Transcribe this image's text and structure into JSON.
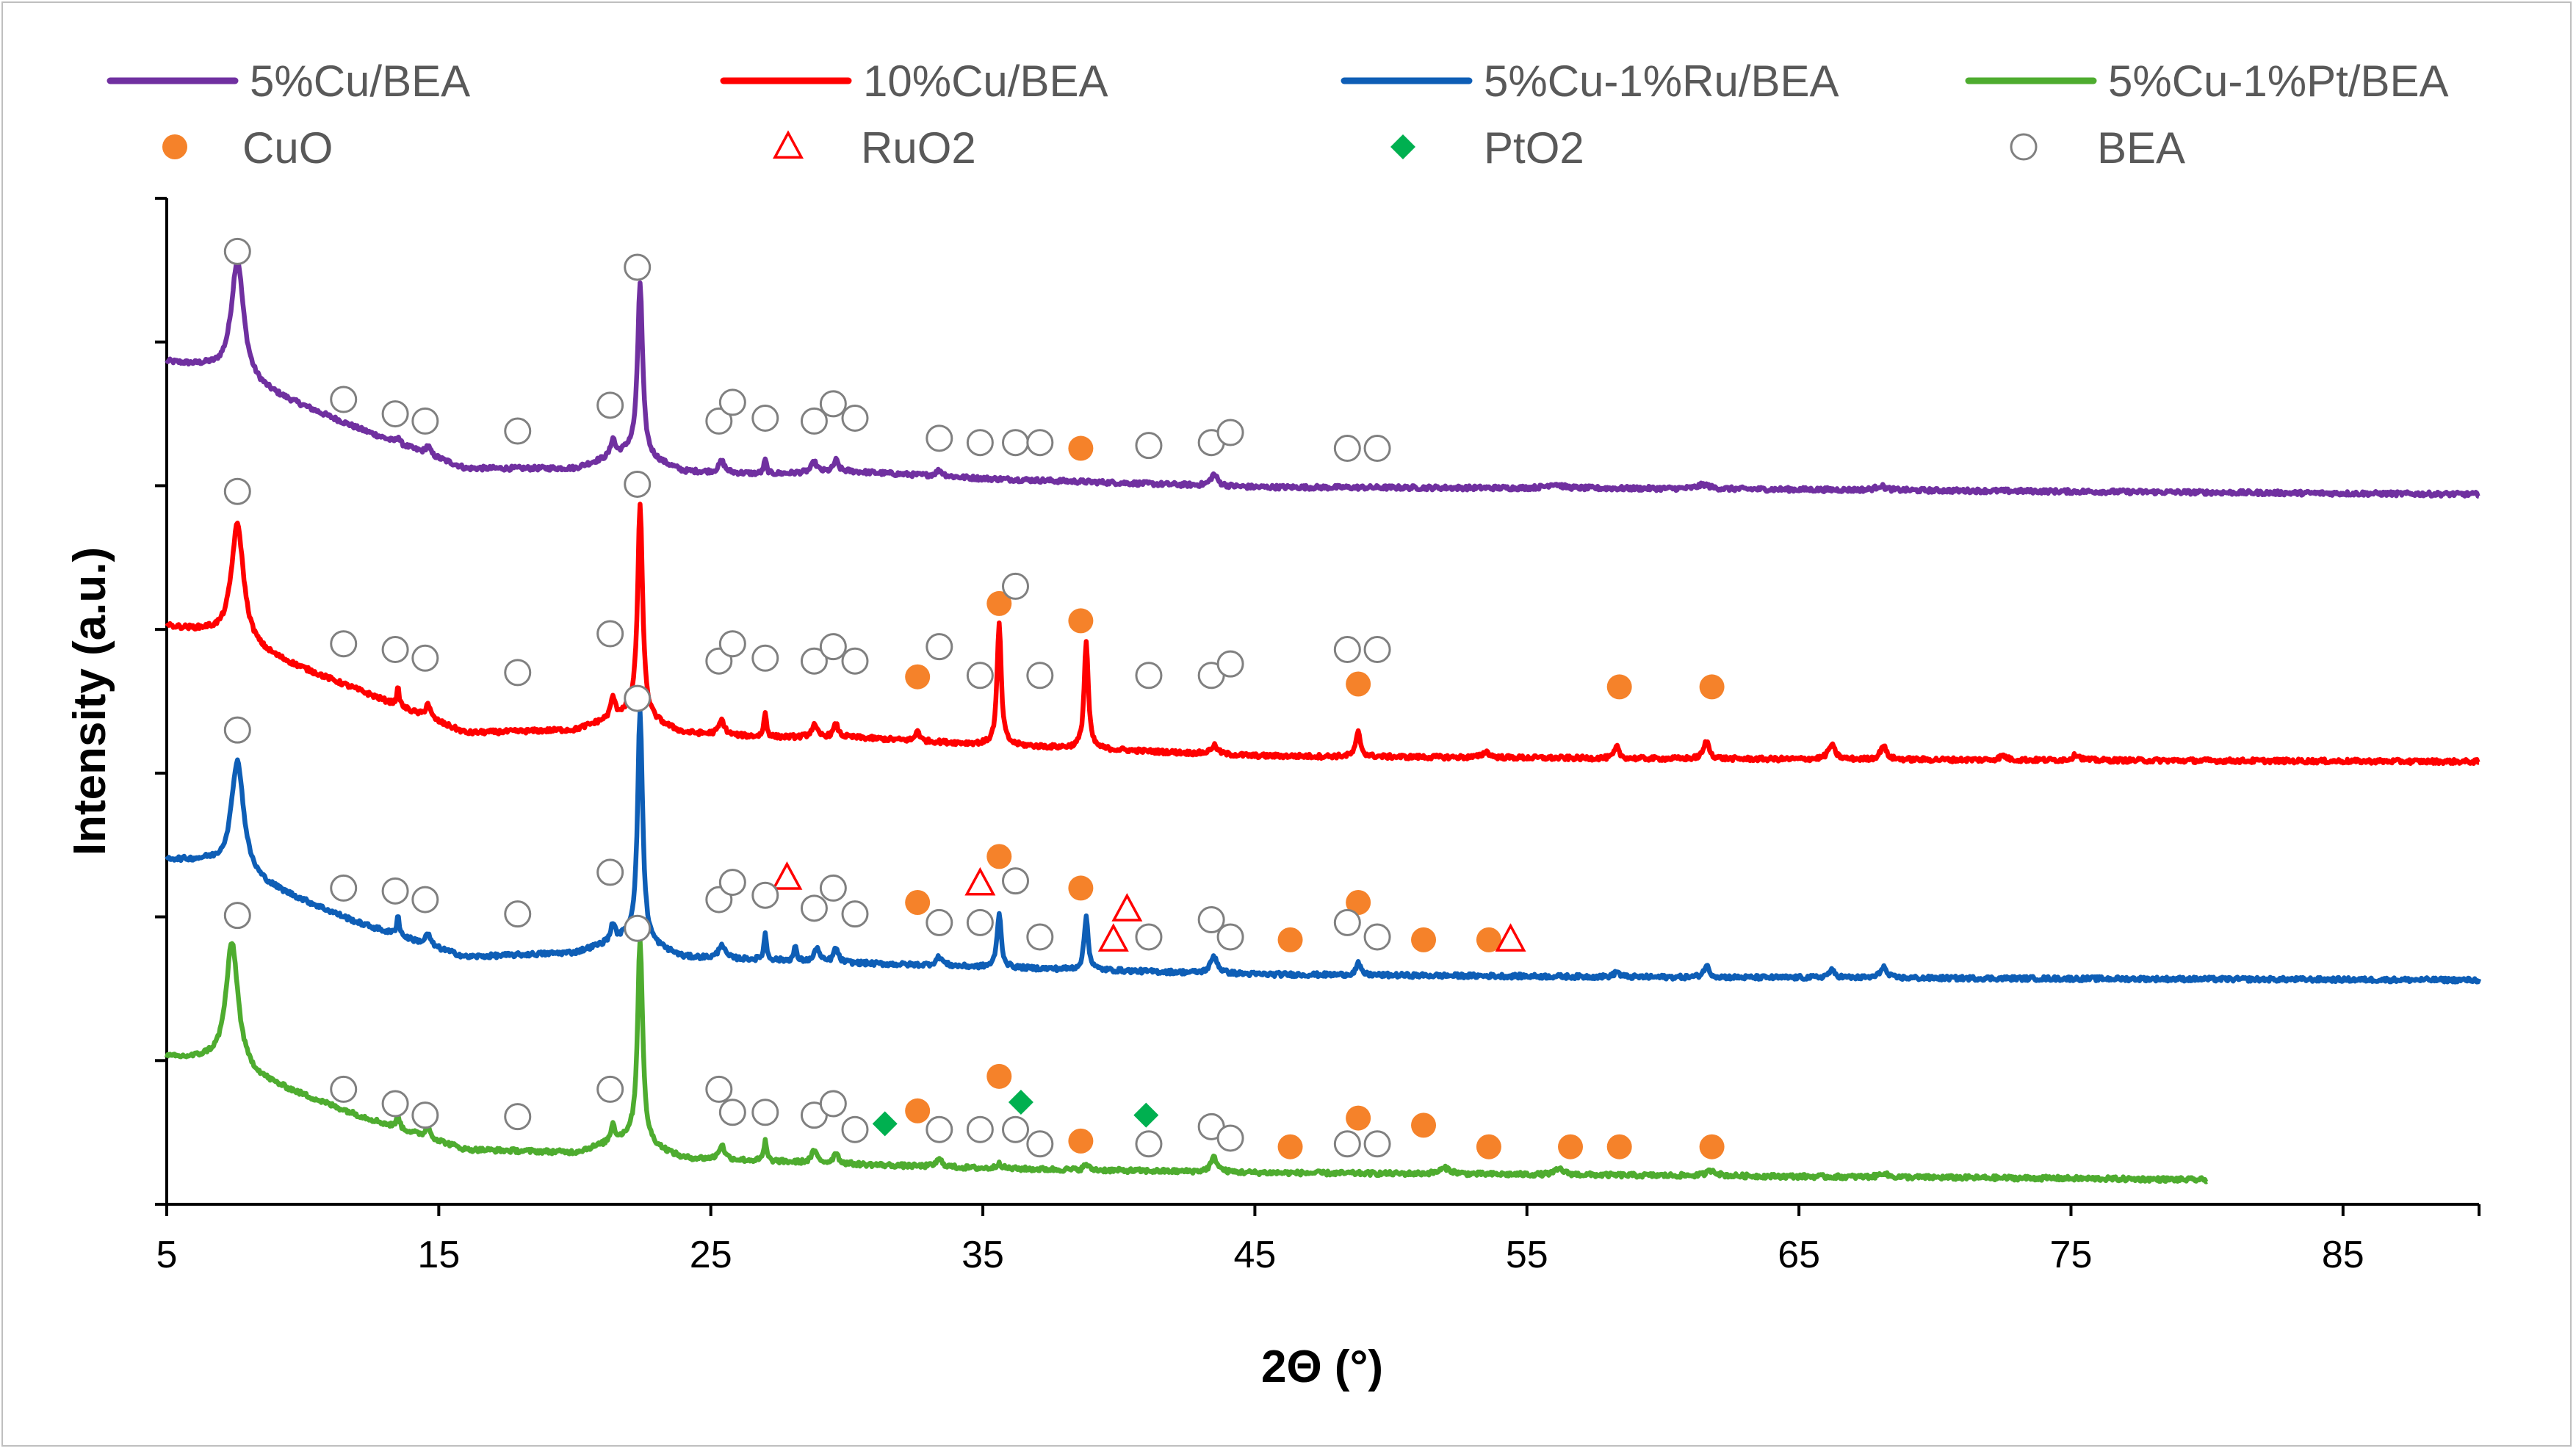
{
  "chart_data": {
    "type": "line",
    "title": "",
    "xlabel": "2Θ (°)",
    "ylabel": "Intensity (a.u.)",
    "xlim": [
      5,
      90
    ],
    "ylim": [
      0,
      7
    ],
    "x_ticks": [
      5,
      15,
      25,
      35,
      45,
      55,
      65,
      75,
      85
    ],
    "y_tick_count": 8,
    "y_tick_labels_shown": false,
    "grid": false,
    "legend_position": "top",
    "series": [
      {
        "name": "5%Cu/BEA",
        "color": "#7030A0",
        "x_range": [
          5,
          90
        ],
        "baseline": [
          [
            5,
            5.86
          ],
          [
            6.5,
            5.82
          ],
          [
            12,
            5.4
          ],
          [
            16,
            5.12
          ],
          [
            20,
            5.12
          ],
          [
            22,
            5.24
          ],
          [
            24,
            5.1
          ],
          [
            27,
            5.08
          ],
          [
            30,
            5.1
          ],
          [
            35,
            5.05
          ],
          [
            45,
            4.99
          ],
          [
            60,
            4.98
          ],
          [
            75,
            4.96
          ],
          [
            90,
            4.94
          ]
        ],
        "peaks": [
          [
            7.6,
            0.83,
            0.55
          ],
          [
            13.5,
            0.05,
            0.12
          ],
          [
            14.6,
            0.06,
            0.2
          ],
          [
            21.4,
            0.12,
            0.18
          ],
          [
            22.4,
            1.2,
            0.22
          ],
          [
            25.4,
            0.08,
            0.25
          ],
          [
            27.0,
            0.1,
            0.12
          ],
          [
            28.8,
            0.07,
            0.25
          ],
          [
            29.6,
            0.08,
            0.2
          ],
          [
            33.4,
            0.04,
            0.3
          ],
          [
            43.5,
            0.08,
            0.3
          ],
          [
            56,
            0.03,
            0.6
          ],
          [
            61.5,
            0.03,
            0.5
          ],
          [
            68,
            0.03,
            0.4
          ]
        ]
      },
      {
        "name": "10%Cu/BEA",
        "color": "#FF0000",
        "x_range": [
          5,
          90
        ],
        "baseline": [
          [
            5,
            4.02
          ],
          [
            6.5,
            3.98
          ],
          [
            12,
            3.58
          ],
          [
            16,
            3.28
          ],
          [
            20,
            3.3
          ],
          [
            22,
            3.42
          ],
          [
            24,
            3.28
          ],
          [
            27,
            3.25
          ],
          [
            30,
            3.25
          ],
          [
            35,
            3.2
          ],
          [
            45,
            3.12
          ],
          [
            60,
            3.1
          ],
          [
            75,
            3.09
          ],
          [
            90,
            3.08
          ]
        ],
        "peaks": [
          [
            7.6,
            0.83,
            0.55
          ],
          [
            13.5,
            0.12,
            0.12
          ],
          [
            14.6,
            0.1,
            0.2
          ],
          [
            21.4,
            0.14,
            0.18
          ],
          [
            22.4,
            1.47,
            0.22
          ],
          [
            25.4,
            0.1,
            0.25
          ],
          [
            27.0,
            0.17,
            0.12
          ],
          [
            28.8,
            0.08,
            0.25
          ],
          [
            29.6,
            0.09,
            0.2
          ],
          [
            32.6,
            0.08,
            0.15
          ],
          [
            35.6,
            0.85,
            0.18
          ],
          [
            38.8,
            0.75,
            0.18
          ],
          [
            43.5,
            0.06,
            0.3
          ],
          [
            48.8,
            0.17,
            0.2
          ],
          [
            53.5,
            0.04,
            0.3
          ],
          [
            58.3,
            0.08,
            0.2
          ],
          [
            61.6,
            0.12,
            0.25
          ],
          [
            66.2,
            0.1,
            0.3
          ],
          [
            68.1,
            0.1,
            0.25
          ],
          [
            72.5,
            0.03,
            0.3
          ],
          [
            75.2,
            0.04,
            0.3
          ]
        ]
      },
      {
        "name": "5%Cu-1%Ru/BEA",
        "color": "#0E5EB6",
        "x_range": [
          5,
          90
        ],
        "baseline": [
          [
            5,
            2.4
          ],
          [
            6.5,
            2.38
          ],
          [
            12,
            1.96
          ],
          [
            16,
            1.72
          ],
          [
            20,
            1.75
          ],
          [
            22,
            1.86
          ],
          [
            24,
            1.72
          ],
          [
            27,
            1.7
          ],
          [
            30,
            1.68
          ],
          [
            35,
            1.65
          ],
          [
            45,
            1.6
          ],
          [
            60,
            1.58
          ],
          [
            75,
            1.57
          ],
          [
            90,
            1.56
          ]
        ],
        "peaks": [
          [
            7.6,
            0.79,
            0.55
          ],
          [
            13.5,
            0.14,
            0.12
          ],
          [
            14.6,
            0.08,
            0.2
          ],
          [
            21.4,
            0.12,
            0.18
          ],
          [
            22.4,
            1.6,
            0.22
          ],
          [
            25.4,
            0.1,
            0.25
          ],
          [
            27.0,
            0.18,
            0.12
          ],
          [
            28.1,
            0.1,
            0.12
          ],
          [
            28.9,
            0.1,
            0.2
          ],
          [
            29.6,
            0.1,
            0.2
          ],
          [
            33.4,
            0.06,
            0.3
          ],
          [
            35.6,
            0.38,
            0.18
          ],
          [
            38.8,
            0.37,
            0.18
          ],
          [
            43.5,
            0.12,
            0.3
          ],
          [
            48.8,
            0.08,
            0.2
          ],
          [
            58.3,
            0.04,
            0.2
          ],
          [
            61.6,
            0.08,
            0.25
          ],
          [
            66.2,
            0.05,
            0.3
          ],
          [
            68.1,
            0.08,
            0.25
          ]
        ]
      },
      {
        "name": "5%Cu-1%Pt/BEA",
        "color": "#4EAC2F",
        "x_range": [
          5,
          80
        ],
        "baseline": [
          [
            5,
            1.02
          ],
          [
            6.5,
            1.0
          ],
          [
            12,
            0.62
          ],
          [
            16,
            0.38
          ],
          [
            20,
            0.36
          ],
          [
            22,
            0.46
          ],
          [
            24,
            0.32
          ],
          [
            27,
            0.3
          ],
          [
            30,
            0.28
          ],
          [
            35,
            0.25
          ],
          [
            45,
            0.22
          ],
          [
            60,
            0.2
          ],
          [
            75,
            0.18
          ],
          [
            80,
            0.17
          ]
        ],
        "peaks": [
          [
            7.4,
            0.88,
            0.55
          ],
          [
            13.5,
            0.1,
            0.12
          ],
          [
            14.6,
            0.08,
            0.2
          ],
          [
            21.4,
            0.12,
            0.18
          ],
          [
            22.4,
            1.42,
            0.22
          ],
          [
            25.4,
            0.1,
            0.25
          ],
          [
            27.0,
            0.14,
            0.12
          ],
          [
            28.8,
            0.08,
            0.25
          ],
          [
            29.6,
            0.08,
            0.2
          ],
          [
            33.4,
            0.05,
            0.3
          ],
          [
            35.6,
            0.04,
            0.2
          ],
          [
            38.8,
            0.04,
            0.2
          ],
          [
            43.5,
            0.1,
            0.3
          ],
          [
            52,
            0.04,
            0.5
          ],
          [
            56.2,
            0.04,
            0.4
          ],
          [
            61.8,
            0.04,
            0.4
          ],
          [
            68.1,
            0.03,
            0.3
          ]
        ]
      }
    ],
    "markers": [
      {
        "name": "CuO",
        "symbol": "filled-circle",
        "color": "#F5822A",
        "points": [
          [
            38.6,
            5.26
          ],
          [
            32.6,
            3.67
          ],
          [
            35.6,
            4.18
          ],
          [
            38.6,
            4.06
          ],
          [
            48.8,
            3.62
          ],
          [
            58.4,
            3.6
          ],
          [
            61.8,
            3.6
          ],
          [
            32.6,
            2.1
          ],
          [
            35.6,
            2.42
          ],
          [
            38.6,
            2.2
          ],
          [
            46.3,
            1.84
          ],
          [
            48.8,
            2.1
          ],
          [
            51.2,
            1.84
          ],
          [
            53.6,
            1.84
          ],
          [
            32.6,
            0.65
          ],
          [
            35.6,
            0.89
          ],
          [
            38.6,
            0.44
          ],
          [
            46.3,
            0.4
          ],
          [
            48.8,
            0.6
          ],
          [
            51.2,
            0.55
          ],
          [
            53.6,
            0.4
          ],
          [
            56.6,
            0.4
          ],
          [
            58.4,
            0.4
          ],
          [
            61.8,
            0.4
          ]
        ]
      },
      {
        "name": "RuO2",
        "symbol": "open-triangle",
        "color": "#FF0000",
        "points": [
          [
            27.8,
            2.27
          ],
          [
            34.9,
            2.23
          ],
          [
            39.8,
            1.84
          ],
          [
            40.3,
            2.05
          ],
          [
            54.4,
            1.84
          ]
        ]
      },
      {
        "name": "PtO2",
        "symbol": "filled-diamond",
        "color": "#00B050",
        "points": [
          [
            31.4,
            0.56
          ],
          [
            36.4,
            0.71
          ],
          [
            41.0,
            0.62
          ]
        ]
      },
      {
        "name": "BEA",
        "symbol": "open-circle",
        "color": "#808080",
        "points": [
          [
            7.6,
            6.63
          ],
          [
            22.3,
            6.52
          ],
          [
            11.5,
            5.6
          ],
          [
            13.4,
            5.5
          ],
          [
            14.5,
            5.45
          ],
          [
            17.9,
            5.38
          ],
          [
            21.3,
            5.56
          ],
          [
            25.3,
            5.45
          ],
          [
            25.8,
            5.58
          ],
          [
            27.0,
            5.47
          ],
          [
            28.8,
            5.45
          ],
          [
            29.5,
            5.57
          ],
          [
            30.3,
            5.47
          ],
          [
            33.4,
            5.33
          ],
          [
            34.9,
            5.3
          ],
          [
            36.2,
            5.3
          ],
          [
            37.1,
            5.3
          ],
          [
            41.1,
            5.28
          ],
          [
            43.4,
            5.3
          ],
          [
            44.1,
            5.37
          ],
          [
            48.4,
            5.26
          ],
          [
            49.5,
            5.26
          ],
          [
            7.6,
            4.96
          ],
          [
            22.3,
            5.01
          ],
          [
            11.5,
            3.9
          ],
          [
            13.4,
            3.86
          ],
          [
            14.5,
            3.8
          ],
          [
            17.9,
            3.7
          ],
          [
            21.3,
            3.97
          ],
          [
            25.3,
            3.78
          ],
          [
            25.8,
            3.9
          ],
          [
            27.0,
            3.8
          ],
          [
            28.8,
            3.78
          ],
          [
            29.5,
            3.88
          ],
          [
            30.3,
            3.78
          ],
          [
            33.4,
            3.88
          ],
          [
            34.9,
            3.68
          ],
          [
            36.2,
            4.3
          ],
          [
            37.1,
            3.68
          ],
          [
            41.1,
            3.68
          ],
          [
            43.4,
            3.68
          ],
          [
            44.1,
            3.76
          ],
          [
            48.4,
            3.86
          ],
          [
            49.5,
            3.86
          ],
          [
            7.6,
            3.3
          ],
          [
            22.3,
            3.52
          ],
          [
            11.5,
            2.2
          ],
          [
            13.4,
            2.18
          ],
          [
            14.5,
            2.12
          ],
          [
            17.9,
            2.02
          ],
          [
            21.3,
            2.31
          ],
          [
            25.3,
            2.12
          ],
          [
            25.8,
            2.24
          ],
          [
            27.0,
            2.15
          ],
          [
            28.8,
            2.06
          ],
          [
            29.5,
            2.2
          ],
          [
            30.3,
            2.02
          ],
          [
            33.4,
            1.96
          ],
          [
            34.9,
            1.96
          ],
          [
            36.2,
            2.25
          ],
          [
            37.1,
            1.86
          ],
          [
            41.1,
            1.86
          ],
          [
            43.4,
            1.98
          ],
          [
            44.1,
            1.86
          ],
          [
            48.4,
            1.96
          ],
          [
            49.5,
            1.86
          ],
          [
            7.6,
            2.01
          ],
          [
            22.3,
            1.92
          ],
          [
            11.5,
            0.8
          ],
          [
            13.4,
            0.7
          ],
          [
            14.5,
            0.62
          ],
          [
            17.9,
            0.61
          ],
          [
            21.3,
            0.8
          ],
          [
            25.3,
            0.8
          ],
          [
            25.8,
            0.64
          ],
          [
            27.0,
            0.64
          ],
          [
            28.8,
            0.62
          ],
          [
            29.5,
            0.7
          ],
          [
            30.3,
            0.52
          ],
          [
            33.4,
            0.52
          ],
          [
            34.9,
            0.52
          ],
          [
            36.2,
            0.52
          ],
          [
            37.1,
            0.42
          ],
          [
            41.1,
            0.42
          ],
          [
            43.4,
            0.54
          ],
          [
            44.1,
            0.46
          ],
          [
            48.4,
            0.42
          ],
          [
            49.5,
            0.42
          ]
        ]
      }
    ]
  }
}
